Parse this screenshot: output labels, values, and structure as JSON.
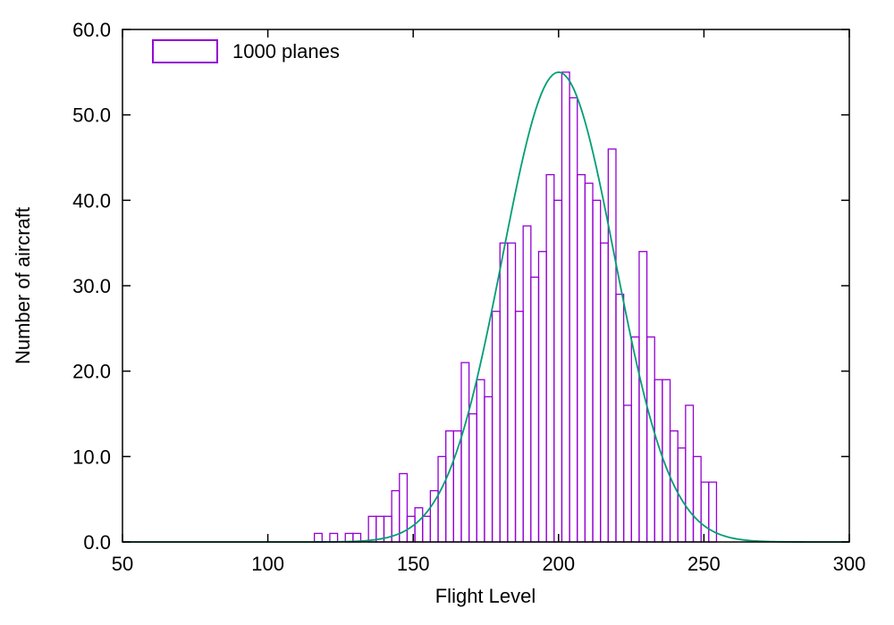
{
  "chart_data": {
    "type": "bar",
    "title": "",
    "xlabel": "Flight Level",
    "ylabel": "Number of aircraft",
    "xlim": [
      50,
      300
    ],
    "ylim": [
      0,
      60
    ],
    "grid": false,
    "x_tick_values": [
      50,
      100,
      150,
      200,
      250,
      300
    ],
    "x_tick_labels": [
      "50",
      "100",
      "150",
      "200",
      "250",
      "300"
    ],
    "y_tick_values": [
      0,
      10,
      20,
      30,
      40,
      50,
      60
    ],
    "y_tick_labels": [
      "0.0",
      "10.0",
      "20.0",
      "30.0",
      "40.0",
      "50.0",
      "60.0"
    ],
    "legend": {
      "label": "1000 planes",
      "position": "top-left"
    },
    "histogram": {
      "series_name": "1000 planes",
      "color": "#9400d3",
      "bin_start": 116.0,
      "bin_width": 2.66,
      "counts": [
        1,
        0,
        1,
        0,
        1,
        1,
        0,
        3,
        3,
        3,
        6,
        8,
        3,
        4,
        3,
        6,
        10,
        13,
        13,
        21,
        15,
        19,
        17,
        27,
        35,
        35,
        27,
        37,
        31,
        34,
        43,
        40,
        55,
        52,
        43,
        42,
        40,
        35,
        46,
        29,
        16,
        24,
        34,
        24,
        19,
        19,
        13,
        11,
        16,
        10,
        7,
        7
      ]
    },
    "curve": {
      "type": "gaussian",
      "color": "#009e73",
      "amplitude": 55,
      "mean": 200,
      "sigma": 19.3
    }
  }
}
